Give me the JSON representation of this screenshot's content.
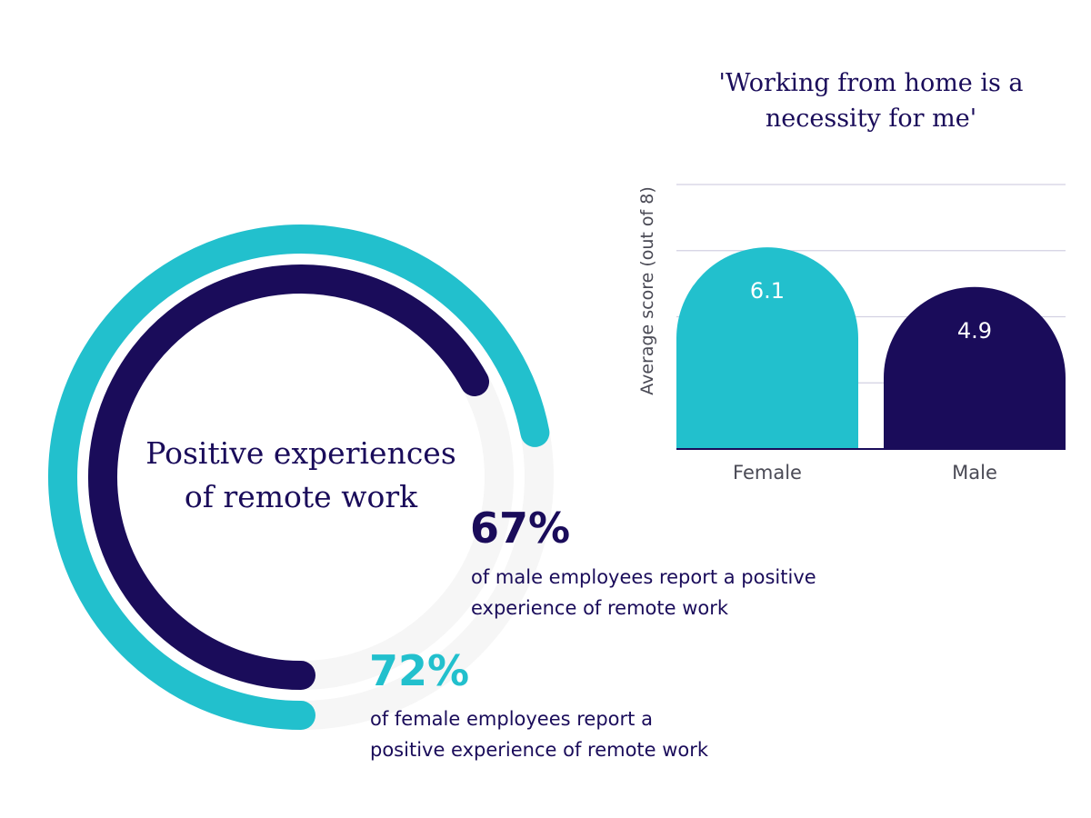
{
  "colors": {
    "teal": "#22c0cd",
    "navy": "#1a0c5a",
    "track": "#f6f6f6",
    "grid": "#d3d1e2",
    "text_gray": "#4a4a55"
  },
  "donut": {
    "title_line1": "Positive experiences",
    "title_line2": "of remote work",
    "male": {
      "percent": 67,
      "value_label": "67%",
      "desc_line1": "of male employees report a positive",
      "desc_line2": "experience of remote work"
    },
    "female": {
      "percent": 72,
      "value_label": "72%",
      "desc_line1": "of female employees report a",
      "desc_line2": "positive experience of remote work"
    }
  },
  "chart_data": [
    {
      "type": "pie",
      "title": "Positive experiences of remote work",
      "categories": [
        "Male",
        "Female"
      ],
      "values": [
        67,
        72
      ],
      "unit": "%"
    },
    {
      "type": "bar",
      "title_line1": "'Working from home is a",
      "title_line2": "necessity for me'",
      "ylabel": "Average score (out of 8)",
      "categories": [
        "Female",
        "Male"
      ],
      "values": [
        6.1,
        4.9
      ],
      "value_labels": [
        "6.1",
        "4.9"
      ],
      "ylim": [
        0,
        8
      ],
      "gridlines": [
        2,
        4,
        6,
        8
      ],
      "grid": true
    }
  ]
}
